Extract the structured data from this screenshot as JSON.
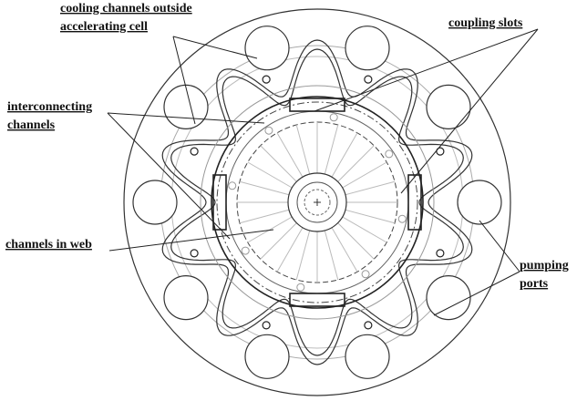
{
  "labels": [
    {
      "lines": [
        "cooling channels outside",
        "accelerating cell"
      ]
    },
    {
      "lines": [
        "coupling slots"
      ]
    },
    {
      "lines": [
        "interconnecting",
        "channels"
      ]
    },
    {
      "lines": [
        "channels in web"
      ]
    },
    {
      "lines": [
        "pumping",
        "ports"
      ]
    }
  ]
}
